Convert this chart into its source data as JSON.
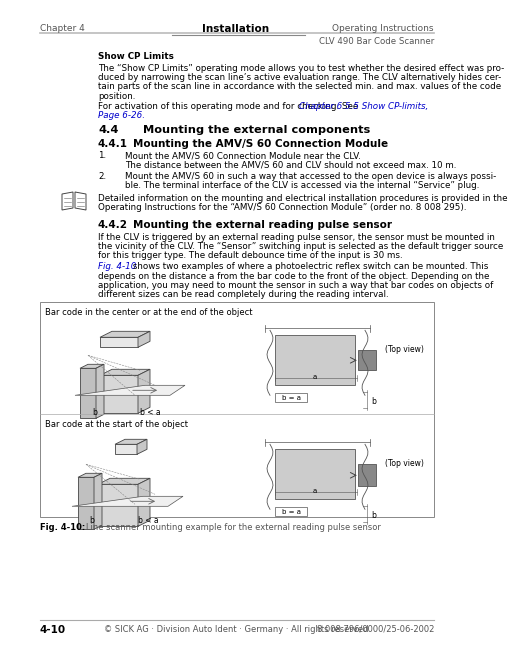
{
  "page_bg": "#ffffff",
  "header_left": "Chapter 4",
  "header_center": "Installation",
  "header_right": "Operating Instructions",
  "header_sub_right": "CLV 490 Bar Code Scanner",
  "footer_left": "4-10",
  "footer_center": "© SICK AG · Division Auto Ident · Germany · All rights reserved",
  "footer_right": "8 008 796/0000/25-06-2002",
  "show_cp_bold": "Show CP Limits",
  "show_cp_text": "The “Show CP Limits” operating mode allows you to test whether the desired effect was pro-\nduced by narrowing the scan line’s active evaluation range. The CLV alternatively hides cer-\ntain parts of the scan line in accordance with the selected min. and max. values of the code\nposition.",
  "show_cp_ref_pre": "For activation of this operating mode and for checking. See ",
  "show_cp_ref_link": "Chapter 6.5.5 Show CP-limits,",
  "show_cp_ref_link2": "Page 6-26.",
  "sec44_num": "4.4",
  "sec44_name": "Mounting the external components",
  "sec441_num": "4.4.1",
  "sec441_name": "Mounting the AMV/S 60 Connection Module",
  "item1a": "Mount the AMV/S 60 Connection Module near the CLV.",
  "item1b": "The distance between the AMV/S 60 and CLV should not exceed max. 10 m.",
  "item2a": "Mount the AMV/S 60 in such a way that accessed to the open device is always possi-",
  "item2b": "ble. The terminal interface of the CLV is accessed via the internal “Service” plug.",
  "note_line1": "Detailed information on the mounting and electrical installation procedures is provided in the",
  "note_line2": "Operating Instructions for the “AMV/S 60 Connection Module” (order no. 8 008 295).",
  "sec442_num": "4.4.2",
  "sec442_name": "Mounting the external reading pulse sensor",
  "sec442_p1l1": "If the CLV is triggered by an external reading pulse sensor, the sensor must be mounted in",
  "sec442_p1l2": "the vicinity of the CLV. The “Sensor” switching input is selected as the default trigger source",
  "sec442_p1l3": "for this trigger type. The default debounce time of the input is 30 ms.",
  "sec442_p2l1_link": "Fig. 4-10",
  "sec442_p2l1_rest": " shows two examples of where a photoelectric reflex switch can be mounted. This",
  "sec442_p2l2": "depends on the distance a from the bar code to the front of the object. Depending on the",
  "sec442_p2l3": "application, you may need to mount the sensor in such a way that bar codes on objects of",
  "sec442_p2l4": "different sizes can be read completely during the reading interval.",
  "fig_label_top": "Bar code in the center or at the end of the object",
  "fig_label_bot": "Bar code at the start of the object",
  "fig_topview": "(Top view)",
  "fig_caption": "Fig. 4-10:",
  "fig_caption_rest": "   Line scanner mounting example for the external reading pulse sensor",
  "link_color": "#0000cc",
  "text_color": "#000000",
  "gray_text": "#555555",
  "line_gray": "#999999",
  "line_dark": "#666666"
}
